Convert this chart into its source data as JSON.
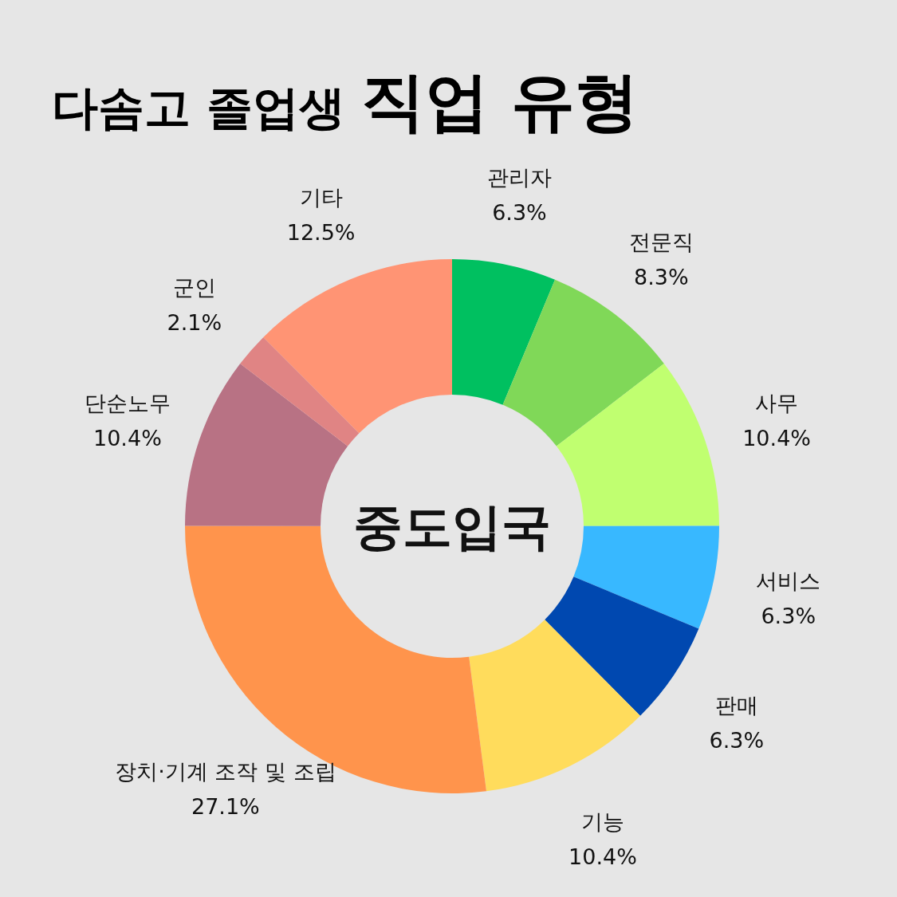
{
  "chart_data": {
    "type": "donut",
    "title": "다솜고 졸업생 **직업 유형**",
    "annotations": [
      "중도입국"
    ],
    "categories": [
      "관리자",
      "전문직",
      "사무",
      "서비스",
      "판매",
      "기능",
      "장치·기계 조작 및 조립",
      "단순노무",
      "군인",
      "기타"
    ],
    "values": [
      6.3,
      8.3,
      10.4,
      6.3,
      6.3,
      10.4,
      27.1,
      10.4,
      2.1,
      12.5
    ],
    "value_labels": [
      "6.3%",
      "8.3%",
      "10.4%",
      "6.3%",
      "6.3%",
      "10.4%",
      "27.1%",
      "10.4%",
      "2.1%",
      "12.5%"
    ],
    "colors": [
      "#00c060",
      "#80d858",
      "#c0ff70",
      "#38b8ff",
      "#0048b0",
      "#ffdc5c",
      "#ff944c",
      "#b87284",
      "#e08484",
      "#ff9474"
    ]
  }
}
